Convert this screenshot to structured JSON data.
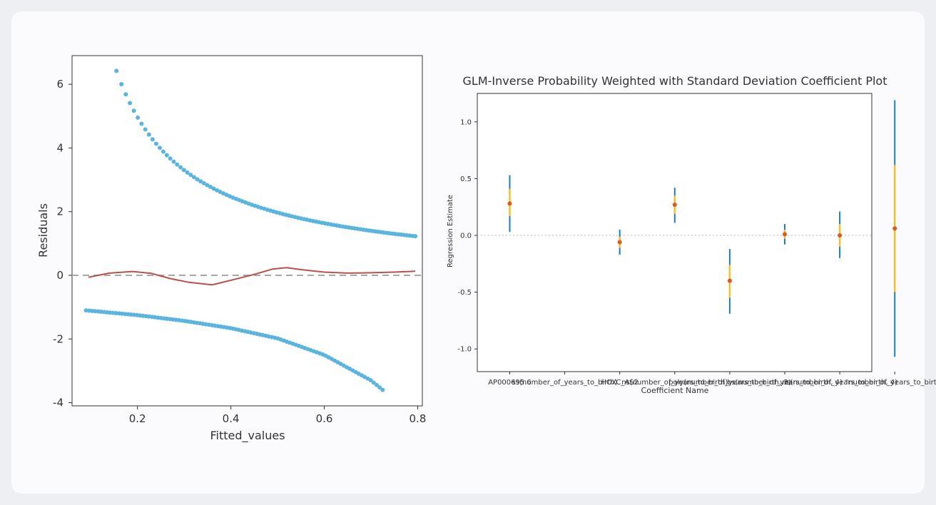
{
  "charts": {
    "colors": {
      "points": "#5ab4e0",
      "smooth": "#b8504b",
      "zero_line": "#a8a8a8",
      "ci_outer": "#1a7fc1",
      "ci_inner": "#f5c02a",
      "estimate": "#d95a22",
      "ref_line": "#bbbbbb"
    }
  },
  "chart_data": [
    {
      "type": "scatter",
      "title": "",
      "xlabel": "Fitted_values",
      "ylabel": "Residuals",
      "xlim": [
        0.06,
        0.81
      ],
      "ylim": [
        -4.1,
        6.9
      ],
      "x_ticks": [
        0.2,
        0.4,
        0.6,
        0.8
      ],
      "y_ticks": [
        -4,
        -2,
        0,
        2,
        4,
        6
      ],
      "zero_line": 0,
      "upper_curve": {
        "formula": "residual = 1 - fitted",
        "x_range": [
          0.155,
          0.795
        ],
        "n_points": 95
      },
      "lower_curve": {
        "x": [
          0.09,
          0.2,
          0.3,
          0.4,
          0.5,
          0.6,
          0.65,
          0.7,
          0.725
        ],
        "y": [
          -1.1,
          -1.25,
          -1.43,
          -1.66,
          -1.98,
          -2.5,
          -2.9,
          -3.3,
          -3.6
        ],
        "n_points": 100
      },
      "smooth": {
        "x": [
          0.095,
          0.14,
          0.19,
          0.23,
          0.27,
          0.31,
          0.36,
          0.41,
          0.45,
          0.49,
          0.52,
          0.55,
          0.6,
          0.65,
          0.7,
          0.75,
          0.795
        ],
        "y": [
          -0.06,
          0.07,
          0.12,
          0.06,
          -0.1,
          -0.22,
          -0.3,
          -0.12,
          0.03,
          0.2,
          0.24,
          0.18,
          0.1,
          0.07,
          0.08,
          0.1,
          0.13
        ]
      }
    },
    {
      "type": "errorbar",
      "title": "GLM-Inverse Probability Weighted with Standard Deviation Coefficient Plot",
      "xlabel": "Coefficient Name",
      "ylabel": "Regression Estimate",
      "ylim": [
        -1.2,
        1.25
      ],
      "y_ticks": [
        -1.0,
        -0.5,
        0.0,
        0.5,
        1.0
      ],
      "ref_line": 0.0,
      "categories": [
        "AP000695.6",
        "ss(number_of_years_to_birth)",
        "HOXC_AS2",
        "ns(number_of_years_to_birth)",
        "poly(number_of_years_to_birth, 3)",
        "bs(number_of_years_to_birth, 4)",
        "ns(number_of_years_to_birth, 4)",
        "\"number_of_years_to_birth\""
      ],
      "series": [
        {
          "category_index": 0,
          "estimate": 0.28,
          "outer": [
            0.03,
            0.53
          ],
          "inner": [
            0.17,
            0.41
          ]
        },
        {
          "category_index": 2,
          "estimate": -0.06,
          "outer": [
            -0.17,
            0.05
          ],
          "inner": [
            -0.11,
            -0.01
          ]
        },
        {
          "category_index": 3,
          "estimate": 0.27,
          "outer": [
            0.11,
            0.42
          ],
          "inner": [
            0.19,
            0.35
          ]
        },
        {
          "category_index": 4,
          "estimate": -0.4,
          "outer": [
            -0.69,
            -0.12
          ],
          "inner": [
            -0.55,
            -0.26
          ]
        },
        {
          "category_index": 5,
          "estimate": 0.01,
          "outer": [
            -0.08,
            0.1
          ],
          "inner": [
            -0.03,
            0.05
          ]
        },
        {
          "category_index": 6,
          "estimate": 0.0,
          "outer": [
            -0.2,
            0.21
          ],
          "inner": [
            -0.1,
            0.1
          ]
        },
        {
          "category_index": 7,
          "estimate": 0.06,
          "outer": [
            -1.07,
            1.19
          ],
          "inner": [
            -0.5,
            0.62
          ]
        }
      ]
    }
  ]
}
